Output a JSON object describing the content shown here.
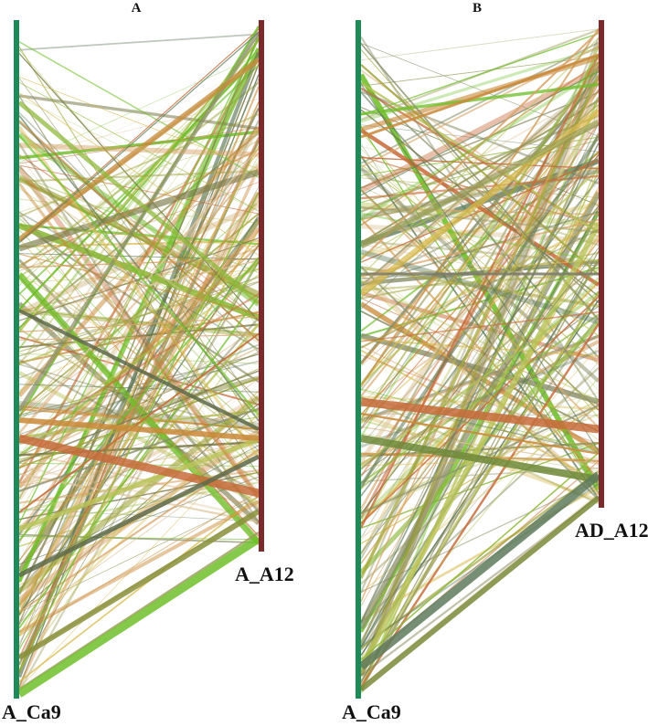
{
  "panels": [
    {
      "id": "A",
      "letter": "A",
      "left_chromosome": {
        "label": "A_Ca9",
        "color": "#1e8a5a"
      },
      "right_chromosome": {
        "label": "A_A12",
        "color": "#7a2a2a"
      }
    },
    {
      "id": "B",
      "letter": "B",
      "left_chromosome": {
        "label": "A_Ca9",
        "color": "#1e8a5a"
      },
      "right_chromosome": {
        "label": "AD_A12",
        "color": "#7a2a2a"
      }
    }
  ],
  "link_palette": [
    "#c98a3a",
    "#d7b84a",
    "#8db83a",
    "#6fbf2a",
    "#b9c35a",
    "#7a7a4a",
    "#9a9a5a",
    "#c76b3a",
    "#e0c7a0",
    "#8a8f6a",
    "#d9a36a",
    "#5e7a5a",
    "#a0a33a"
  ]
}
